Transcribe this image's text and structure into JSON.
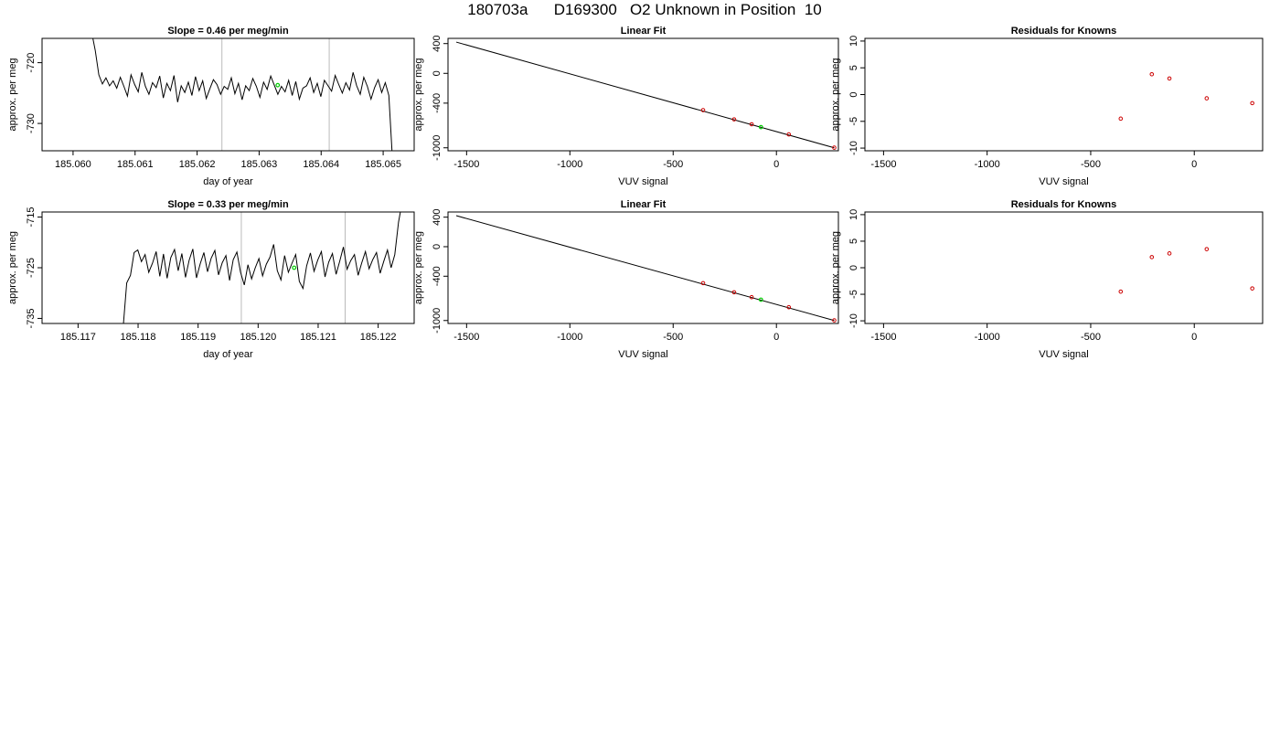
{
  "page_title": "180703a      D169300   O2 Unknown in Position  10",
  "colors": {
    "line": "#000000",
    "known_points": "#cc0000",
    "unknown_point": "#00cc00",
    "marker_lines": "#bbbbbb",
    "frame": "#000000"
  },
  "chart_data": [
    {
      "id": "time-series-1",
      "type": "line",
      "title": "Slope =  0.46  per meg/min",
      "xlabel": "day of year",
      "ylabel": "approx. per meg",
      "xlim": [
        185.0595,
        185.0655
      ],
      "ylim": [
        -734.5,
        -716.0
      ],
      "xticks": [
        185.06,
        185.061,
        185.062,
        185.063,
        185.064,
        185.065
      ],
      "xtick_labels": [
        "185.060",
        "185.061",
        "185.062",
        "185.063",
        "185.064",
        "185.065"
      ],
      "yticks": [
        -720,
        -730
      ],
      "ytick_labels": [
        "-720",
        "-730"
      ],
      "marker_lines_x": [
        185.0624,
        185.06413
      ],
      "unknown_point": {
        "x": 185.0633,
        "y": -723.7
      },
      "series_start": 185.0603,
      "series_end": 185.06515,
      "series": [
        {
          "values": [
            -715.0,
            -718.0,
            -722.0,
            -723.5,
            -722.5,
            -723.8,
            -723.0,
            -724.2,
            -722.4,
            -723.9,
            -725.5,
            -722.0,
            -723.6,
            -724.8,
            -721.6,
            -723.9,
            -725.2,
            -723.3,
            -724.1,
            -722.2,
            -725.8,
            -723.4,
            -724.6,
            -722.1,
            -726.5,
            -723.8,
            -724.9,
            -723.2,
            -725.4,
            -722.3,
            -724.6,
            -723.0,
            -725.9,
            -724.3,
            -722.8,
            -723.6,
            -725.2,
            -723.9,
            -724.4,
            -722.5,
            -725.1,
            -723.4,
            -726.1,
            -723.8,
            -724.6,
            -722.6,
            -723.9,
            -725.7,
            -723.2,
            -724.4,
            -722.2,
            -723.7,
            -725.2,
            -723.9,
            -724.8,
            -722.9,
            -725.4,
            -723.1,
            -726.0,
            -724.2,
            -723.8,
            -722.5,
            -724.9,
            -723.4,
            -725.6,
            -722.9,
            -723.8,
            -724.7,
            -722.1,
            -723.6,
            -725.0,
            -723.3,
            -724.5,
            -721.6,
            -723.8,
            -725.2,
            -722.4,
            -723.9,
            -726.0,
            -724.1,
            -722.8,
            -724.9,
            -723.3,
            -725.4,
            -736.0
          ]
        }
      ]
    },
    {
      "id": "linear-fit-1",
      "type": "scatter",
      "title": "Linear Fit",
      "xlabel": "VUV signal",
      "ylabel": "approx. per meg",
      "xlim": [
        -1590,
        300
      ],
      "ylim": [
        -1040,
        470
      ],
      "xticks": [
        -1500,
        -1000,
        -500,
        0
      ],
      "xtick_labels": [
        "-1500",
        "-1000",
        "-500",
        "0"
      ],
      "yticks": [
        400,
        0,
        -400,
        -1000
      ],
      "ytick_labels": [
        "400",
        "0",
        "-400",
        "-1000"
      ],
      "fit_line": {
        "x": [
          -1550,
          280
        ],
        "y": [
          420,
          -1000
        ]
      },
      "known_points": [
        {
          "x": -355,
          "y": -494
        },
        {
          "x": -205,
          "y": -618
        },
        {
          "x": -120,
          "y": -684
        },
        {
          "x": 60,
          "y": -820
        },
        {
          "x": 280,
          "y": -998
        }
      ],
      "unknown_point": {
        "x": -75,
        "y": -722
      }
    },
    {
      "id": "residuals-1",
      "type": "scatter",
      "title": "Residuals for Knowns",
      "xlabel": "VUV signal",
      "ylabel": "approx. per meg",
      "xlim": [
        -1590,
        330
      ],
      "ylim": [
        -10.5,
        10.5
      ],
      "xticks": [
        -1500,
        -1000,
        -500,
        0
      ],
      "xtick_labels": [
        "-1500",
        "-1000",
        "-500",
        "0"
      ],
      "yticks": [
        10,
        5,
        0,
        -5,
        -10
      ],
      "ytick_labels": [
        "10",
        "5",
        "0",
        "-5",
        "-10"
      ],
      "known_points": [
        {
          "x": -355,
          "y": -4.5
        },
        {
          "x": -205,
          "y": 3.8
        },
        {
          "x": -120,
          "y": 3.0
        },
        {
          "x": 60,
          "y": -0.7
        },
        {
          "x": 280,
          "y": -1.6
        }
      ]
    },
    {
      "id": "time-series-2",
      "type": "line",
      "title": "Slope =  0.33  per meg/min",
      "xlabel": "day of year",
      "ylabel": "approx. per meg",
      "xlim": [
        185.1164,
        185.1226
      ],
      "ylim": [
        -736.0,
        -714.0
      ],
      "xticks": [
        185.117,
        185.118,
        185.119,
        185.12,
        185.121,
        185.122
      ],
      "xtick_labels": [
        "185.117",
        "185.118",
        "185.119",
        "185.120",
        "185.121",
        "185.122"
      ],
      "yticks": [
        -715,
        -725,
        -735
      ],
      "ytick_labels": [
        "-715",
        "-725",
        "-735"
      ],
      "marker_lines_x": [
        185.11972,
        185.12145
      ],
      "unknown_point": {
        "x": 185.1206,
        "y": -725.0
      },
      "series_start": 185.11775,
      "series_end": 185.1224,
      "series": [
        {
          "values": [
            -737.0,
            -728.0,
            -726.5,
            -722.0,
            -721.5,
            -723.8,
            -722.4,
            -725.9,
            -724.1,
            -721.8,
            -726.7,
            -722.3,
            -727.1,
            -723.0,
            -721.4,
            -725.6,
            -722.2,
            -726.9,
            -723.5,
            -721.3,
            -727.0,
            -724.2,
            -722.0,
            -725.8,
            -723.1,
            -721.6,
            -726.4,
            -724.0,
            -722.6,
            -727.5,
            -723.4,
            -721.9,
            -725.9,
            -728.4,
            -724.4,
            -727.2,
            -725.0,
            -723.2,
            -726.6,
            -724.3,
            -722.9,
            -720.4,
            -725.6,
            -727.4,
            -722.6,
            -725.9,
            -724.1,
            -722.4,
            -727.7,
            -729.1,
            -724.6,
            -722.1,
            -725.7,
            -723.5,
            -721.8,
            -726.8,
            -723.9,
            -722.2,
            -726.3,
            -723.7,
            -720.9,
            -725.3,
            -723.6,
            -722.4,
            -726.5,
            -724.0,
            -721.8,
            -725.2,
            -723.4,
            -722.0,
            -726.1,
            -723.7,
            -721.5,
            -725.0,
            -722.4,
            -716.0,
            -712.0
          ]
        }
      ]
    },
    {
      "id": "linear-fit-2",
      "type": "scatter",
      "title": "Linear Fit",
      "xlabel": "VUV signal",
      "ylabel": "approx. per meg",
      "xlim": [
        -1590,
        300
      ],
      "ylim": [
        -1040,
        470
      ],
      "xticks": [
        -1500,
        -1000,
        -500,
        0
      ],
      "xtick_labels": [
        "-1500",
        "-1000",
        "-500",
        "0"
      ],
      "yticks": [
        400,
        0,
        -400,
        -1000
      ],
      "ytick_labels": [
        "400",
        "0",
        "-400",
        "-1000"
      ],
      "fit_line": {
        "x": [
          -1550,
          280
        ],
        "y": [
          420,
          -1000
        ]
      },
      "known_points": [
        {
          "x": -355,
          "y": -494
        },
        {
          "x": -205,
          "y": -618
        },
        {
          "x": -120,
          "y": -684
        },
        {
          "x": 60,
          "y": -820
        },
        {
          "x": 280,
          "y": -998
        }
      ],
      "unknown_point": {
        "x": -75,
        "y": -718
      }
    },
    {
      "id": "residuals-2",
      "type": "scatter",
      "title": "Residuals for Knowns",
      "xlabel": "VUV signal",
      "ylabel": "approx. per meg",
      "xlim": [
        -1590,
        330
      ],
      "ylim": [
        -10.5,
        10.5
      ],
      "xticks": [
        -1500,
        -1000,
        -500,
        0
      ],
      "xtick_labels": [
        "-1500",
        "-1000",
        "-500",
        "0"
      ],
      "yticks": [
        10,
        5,
        0,
        -5,
        -10
      ],
      "ytick_labels": [
        "10",
        "5",
        "0",
        "-5",
        "-10"
      ],
      "known_points": [
        {
          "x": -355,
          "y": -4.5
        },
        {
          "x": -205,
          "y": 2.0
        },
        {
          "x": -120,
          "y": 2.7
        },
        {
          "x": 60,
          "y": 3.5
        },
        {
          "x": 280,
          "y": -3.9
        }
      ]
    }
  ]
}
